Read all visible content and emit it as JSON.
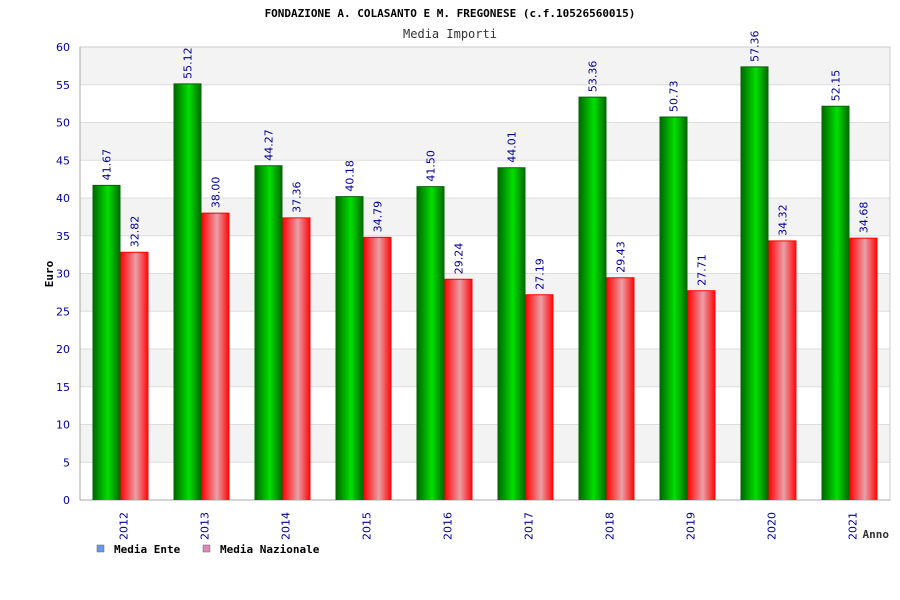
{
  "chart_data": {
    "type": "bar",
    "title": "FONDAZIONE A. COLASANTO E M. FREGONESE (c.f.10526560015)",
    "subtitle": "Media Importi",
    "xlabel": "Anno",
    "ylabel": "Euro",
    "ylim": [
      0,
      60
    ],
    "yticks": [
      0,
      5,
      10,
      15,
      20,
      25,
      30,
      35,
      40,
      45,
      50,
      55,
      60
    ],
    "categories": [
      "2012",
      "2013",
      "2014",
      "2015",
      "2016",
      "2017",
      "2018",
      "2019",
      "2020",
      "2021"
    ],
    "series": [
      {
        "name": "Media Ente",
        "values": [
          41.67,
          55.12,
          44.27,
          40.18,
          41.5,
          44.01,
          53.36,
          50.73,
          57.36,
          52.15
        ],
        "labels": [
          "41.67",
          "55.12",
          "44.27",
          "40.18",
          "41.50",
          "44.01",
          "53.36",
          "50.73",
          "57.36",
          "52.15"
        ],
        "bar_colors": [
          "#006400",
          "#00e000"
        ],
        "legend_color": "#6699ee"
      },
      {
        "name": "Media Nazionale",
        "values": [
          32.82,
          38.0,
          37.36,
          34.79,
          29.24,
          27.19,
          29.43,
          27.71,
          34.32,
          34.68
        ],
        "labels": [
          "32.82",
          "38.00",
          "37.36",
          "34.79",
          "29.24",
          "27.19",
          "29.43",
          "27.71",
          "34.32",
          "34.68"
        ],
        "bar_colors": [
          "#ff0000",
          "#e8a0a8"
        ],
        "legend_color": "#dd88bb"
      }
    ],
    "grid": true,
    "legend_position": "bottom-left",
    "colors": {
      "title": "#000000",
      "subtitle": "#333333",
      "axis_text": "#000099",
      "data_label": "#000099",
      "band": "#f3f3f3",
      "grid": "#dddddd",
      "axis": "#aaaaaa"
    }
  }
}
